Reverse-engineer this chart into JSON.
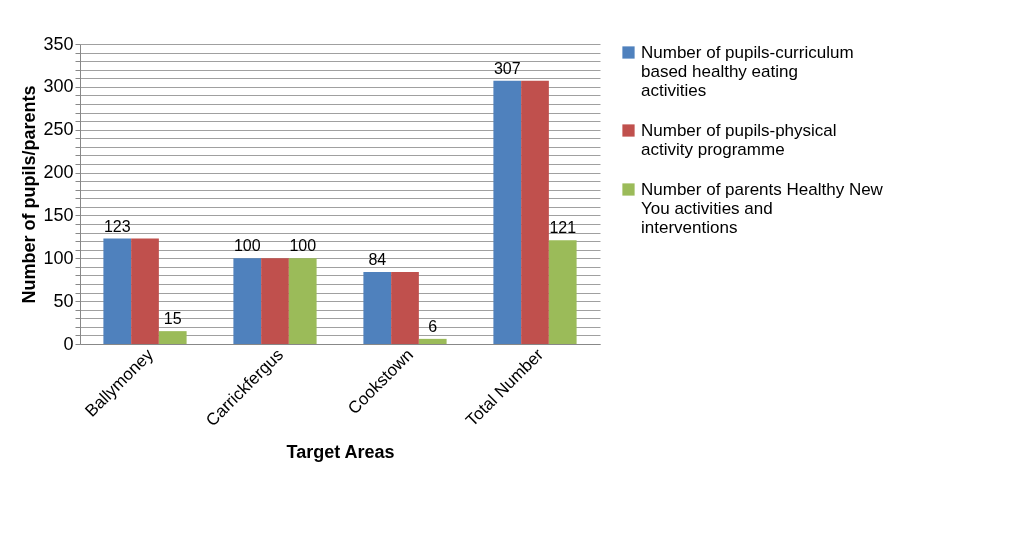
{
  "chart_data": {
    "type": "bar",
    "xlabel": "Target Areas",
    "ylabel": "Number of pupils/parents",
    "categories": [
      "Ballymoney",
      "Carrickfergus",
      "Cookstown",
      "Total Number"
    ],
    "series": [
      {
        "name": "Number of pupils-curriculum based healthy eating activities",
        "color": "#4f81bd",
        "values": [
          123,
          100,
          84,
          307
        ],
        "value_labels": [
          "123",
          "100",
          "84",
          "307"
        ]
      },
      {
        "name": "Number of pupils-physical activity programme",
        "color": "#c0504d",
        "values": [
          123,
          100,
          84,
          307
        ]
      },
      {
        "name": "Number of parents Healthy New You activities and interventions",
        "color": "#9bbb59",
        "values": [
          15,
          100,
          6,
          121
        ],
        "value_labels": [
          "15",
          "100",
          "6",
          "121"
        ]
      }
    ],
    "ylim": [
      0,
      350
    ],
    "yticks": [
      0,
      {
        "value": 10,
        "label": null
      },
      {
        "value": 20,
        "label": null
      },
      {
        "value": 30,
        "label": null
      },
      {
        "value": 40,
        "label": null
      },
      50,
      {
        "value": 60,
        "label": null
      },
      {
        "value": 70,
        "label": null
      },
      {
        "value": 80,
        "label": null
      },
      {
        "value": 90,
        "label": null
      },
      100,
      {
        "value": 110,
        "label": null
      },
      {
        "value": 120,
        "label": null
      },
      {
        "value": 130,
        "label": null
      },
      {
        "value": 140,
        "label": null
      },
      150,
      {
        "value": 160,
        "label": null
      },
      {
        "value": 170,
        "label": null
      },
      {
        "value": 180,
        "label": null
      },
      {
        "value": 190,
        "label": null
      },
      200,
      {
        "value": 210,
        "label": null
      },
      {
        "value": 220,
        "label": null
      },
      {
        "value": 230,
        "label": null
      },
      {
        "value": 240,
        "label": null
      },
      250,
      {
        "value": 260,
        "label": null
      },
      {
        "value": 270,
        "label": null
      },
      {
        "value": 280,
        "label": null
      },
      {
        "value": 290,
        "label": null
      },
      300,
      {
        "value": 310,
        "label": null
      },
      {
        "value": 320,
        "label": null
      },
      {
        "value": 330,
        "label": null
      },
      {
        "value": 340,
        "label": null
      },
      350
    ],
    "grid": true,
    "legend": "right"
  }
}
